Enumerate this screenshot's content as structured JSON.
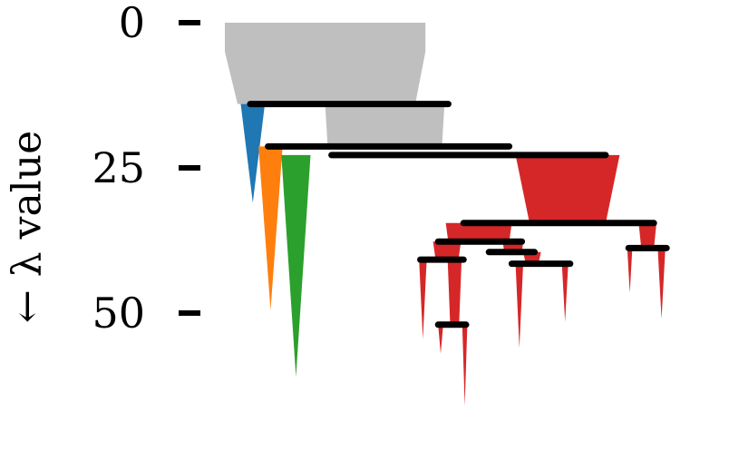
{
  "chart_data": {
    "type": "icicle",
    "ylabel": "← λ value",
    "yticks": [
      0,
      25,
      50
    ],
    "ylim": [
      0,
      66
    ],
    "colors": {
      "root": "#bfbfbf",
      "blue": "#1f77b4",
      "orange": "#ff7f0e",
      "green": "#2ca02c",
      "red": "#d62728",
      "split": "#000000"
    },
    "root": {
      "lambda_start": 0,
      "lambda_end": 14,
      "color": "root"
    },
    "splits": [
      {
        "lambda": 14.0,
        "x_from": 0.1,
        "x_to": 0.88
      },
      {
        "lambda": 21.3,
        "x_from": 0.17,
        "x_to": 1.12
      },
      {
        "lambda": 22.8,
        "x_from": 0.42,
        "x_to": 1.5
      },
      {
        "lambda": 34.5,
        "x_from": 0.94,
        "x_to": 1.69
      },
      {
        "lambda": 37.7,
        "x_from": 0.84,
        "x_to": 1.17
      },
      {
        "lambda": 39.5,
        "x_from": 1.04,
        "x_to": 1.22
      },
      {
        "lambda": 40.8,
        "x_from": 0.77,
        "x_to": 0.94
      },
      {
        "lambda": 41.5,
        "x_from": 1.13,
        "x_to": 1.36
      },
      {
        "lambda": 38.8,
        "x_from": 1.59,
        "x_to": 1.74
      },
      {
        "lambda": 52.0,
        "x_from": 0.84,
        "x_to": 0.95
      }
    ],
    "branches": [
      {
        "color": "root",
        "lambda_start": 14.0,
        "lambda_end": 21.3,
        "x_center": 0.63,
        "width_start": 0.47,
        "width_end": 0.45
      },
      {
        "color": "blue",
        "lambda_start": 14.0,
        "lambda_end": 31.0,
        "x_center": 0.11,
        "width_start": 0.095,
        "width_end": 0.0
      },
      {
        "color": "orange",
        "lambda_start": 21.3,
        "lambda_end": 49.5,
        "x_center": 0.18,
        "width_start": 0.095,
        "width_end": 0.0
      },
      {
        "color": "green",
        "lambda_start": 22.8,
        "lambda_end": 61.0,
        "x_center": 0.28,
        "width_start": 0.115,
        "width_end": 0.0
      },
      {
        "color": "red",
        "lambda_start": 22.8,
        "lambda_end": 34.5,
        "x_center": 1.35,
        "width_start": 0.41,
        "width_end": 0.3
      },
      {
        "color": "red",
        "lambda_start": 34.5,
        "lambda_end": 37.7,
        "x_center": 1.0,
        "width_start": 0.26,
        "width_end": 0.24
      },
      {
        "color": "red",
        "lambda_start": 34.5,
        "lambda_end": 38.8,
        "x_center": 1.665,
        "width_start": 0.07,
        "width_end": 0.05
      },
      {
        "color": "red",
        "lambda_start": 37.7,
        "lambda_end": 40.8,
        "x_center": 0.875,
        "width_start": 0.11,
        "width_end": 0.09
      },
      {
        "color": "red",
        "lambda_start": 37.7,
        "lambda_end": 39.5,
        "x_center": 1.135,
        "width_start": 0.08,
        "width_end": 0.07
      },
      {
        "color": "red",
        "lambda_start": 39.5,
        "lambda_end": 41.5,
        "x_center": 1.21,
        "width_start": 0.07,
        "width_end": 0.05
      },
      {
        "color": "red",
        "lambda_start": 39.5,
        "lambda_end": 40.0,
        "x_center": 1.06,
        "width_start": 0.02,
        "width_end": 0.0
      },
      {
        "color": "red",
        "lambda_start": 40.8,
        "lambda_end": 52.0,
        "x_center": 0.905,
        "width_start": 0.055,
        "width_end": 0.035
      },
      {
        "color": "red",
        "lambda_start": 40.8,
        "lambda_end": 54.5,
        "x_center": 0.78,
        "width_start": 0.03,
        "width_end": 0.0
      },
      {
        "color": "red",
        "lambda_start": 41.5,
        "lambda_end": 56.0,
        "x_center": 1.16,
        "width_start": 0.03,
        "width_end": 0.0
      },
      {
        "color": "red",
        "lambda_start": 41.5,
        "lambda_end": 51.5,
        "x_center": 1.34,
        "width_start": 0.025,
        "width_end": 0.0
      },
      {
        "color": "red",
        "lambda_start": 38.8,
        "lambda_end": 46.5,
        "x_center": 1.595,
        "width_start": 0.02,
        "width_end": 0.0
      },
      {
        "color": "red",
        "lambda_start": 38.8,
        "lambda_end": 51.0,
        "x_center": 1.72,
        "width_start": 0.03,
        "width_end": 0.0
      },
      {
        "color": "red",
        "lambda_start": 52.0,
        "lambda_end": 57.0,
        "x_center": 0.85,
        "width_start": 0.02,
        "width_end": 0.0
      },
      {
        "color": "red",
        "lambda_start": 52.0,
        "lambda_end": 66.0,
        "x_center": 0.945,
        "width_start": 0.02,
        "width_end": 0.0
      }
    ]
  }
}
